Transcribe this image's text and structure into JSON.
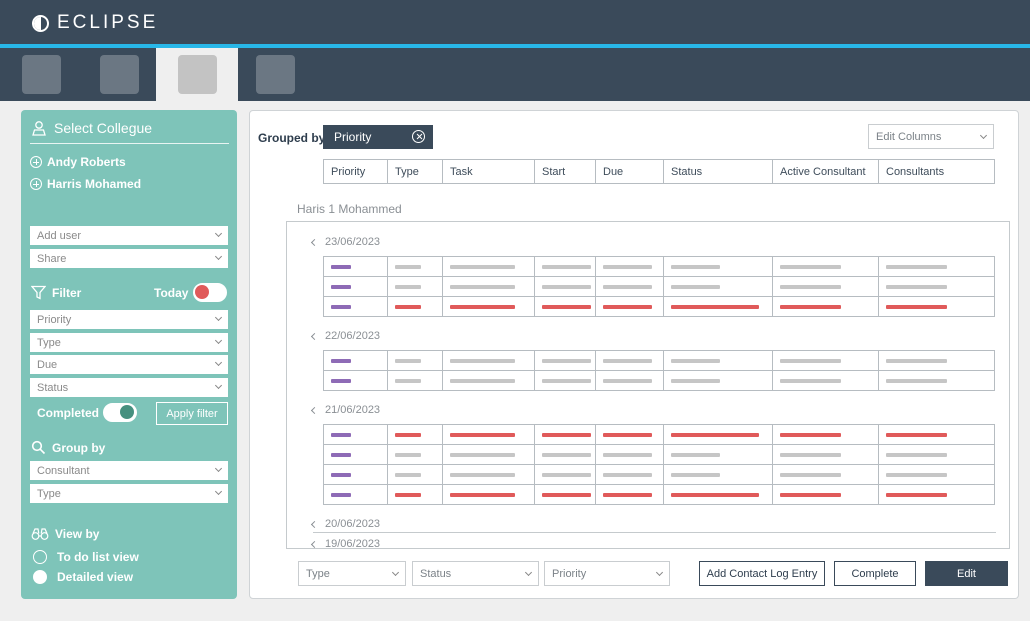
{
  "header": {
    "brand": "ECLIPSE"
  },
  "tabs": [
    {
      "active": false
    },
    {
      "active": false
    },
    {
      "active": true
    },
    {
      "active": false
    }
  ],
  "sidebar": {
    "select_title": "Select Collegue",
    "users": [
      "Andy Roberts",
      "Harris Mohamed"
    ],
    "add_user": "Add user",
    "share": "Share",
    "filter_title": "Filter",
    "today_label": "Today",
    "filters": [
      "Priority",
      "Type",
      "Due",
      "Status"
    ],
    "completed_label": "Completed",
    "apply_filter": "Apply filter",
    "groupby_title": "Group by",
    "groupby_options": [
      "Consultant",
      "Type"
    ],
    "viewby_title": "View by",
    "views": [
      "To do list view",
      "Detailed view"
    ]
  },
  "main": {
    "grouped_by_label": "Grouped by",
    "grouped_chip": "Priority",
    "edit_columns": "Edit Columns",
    "columns": [
      "Priority",
      "Type",
      "Task",
      "Start",
      "Due",
      "Status",
      "Active Consultant",
      "Consultants"
    ],
    "person": "Haris 1 Mohammed",
    "groups": [
      {
        "date": "23/06/2023",
        "rows": [
          "grey",
          "grey",
          "red"
        ]
      },
      {
        "date": "22/06/2023",
        "rows": [
          "grey",
          "grey"
        ]
      },
      {
        "date": "21/06/2023",
        "rows": [
          "red",
          "grey",
          "grey",
          "red"
        ]
      },
      {
        "date": "20/06/2023",
        "rows": []
      },
      {
        "date": "19/06/2023",
        "rows": []
      }
    ],
    "footer": {
      "type": "Type",
      "status": "Status",
      "priority": "Priority",
      "add_log": "Add Contact Log Entry",
      "complete": "Complete",
      "edit": "Edit"
    }
  },
  "colors": {
    "header": "#3a4a5a",
    "accent": "#28b7e8",
    "sidebar": "#7ec4b9",
    "red": "#e05a5a",
    "purple": "#8e6bb6"
  }
}
